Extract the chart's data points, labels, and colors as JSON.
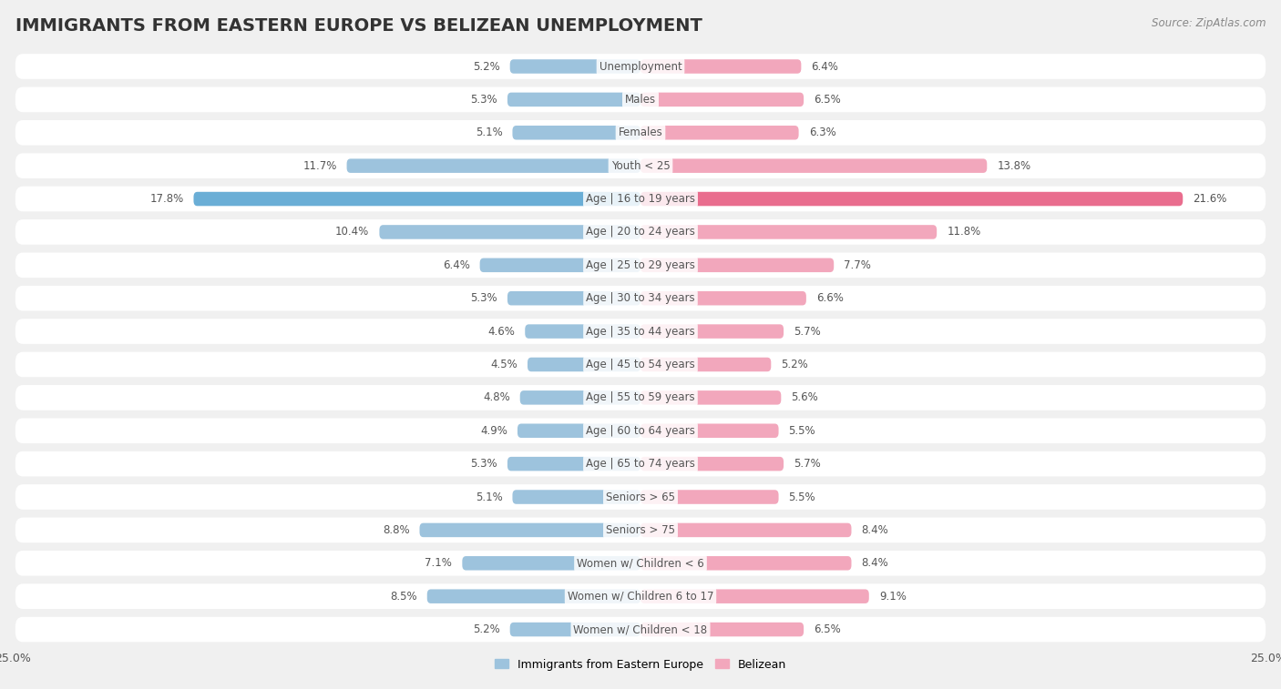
{
  "title": "IMMIGRANTS FROM EASTERN EUROPE VS BELIZEAN UNEMPLOYMENT",
  "source": "Source: ZipAtlas.com",
  "categories": [
    "Unemployment",
    "Males",
    "Females",
    "Youth < 25",
    "Age | 16 to 19 years",
    "Age | 20 to 24 years",
    "Age | 25 to 29 years",
    "Age | 30 to 34 years",
    "Age | 35 to 44 years",
    "Age | 45 to 54 years",
    "Age | 55 to 59 years",
    "Age | 60 to 64 years",
    "Age | 65 to 74 years",
    "Seniors > 65",
    "Seniors > 75",
    "Women w/ Children < 6",
    "Women w/ Children 6 to 17",
    "Women w/ Children < 18"
  ],
  "left_values": [
    5.2,
    5.3,
    5.1,
    11.7,
    17.8,
    10.4,
    6.4,
    5.3,
    4.6,
    4.5,
    4.8,
    4.9,
    5.3,
    5.1,
    8.8,
    7.1,
    8.5,
    5.2
  ],
  "right_values": [
    6.4,
    6.5,
    6.3,
    13.8,
    21.6,
    11.8,
    7.7,
    6.6,
    5.7,
    5.2,
    5.6,
    5.5,
    5.7,
    5.5,
    8.4,
    8.4,
    9.1,
    6.5
  ],
  "left_color": "#9dc3dd",
  "right_color": "#f2a7bc",
  "highlight_left_color": "#6aaed6",
  "highlight_right_color": "#e96d8e",
  "highlight_rows": [
    4
  ],
  "xlim": 25.0,
  "bg_color": "#f0f0f0",
  "row_bg_color": "#ffffff",
  "row_alt_bg_color": "#f7f7f7",
  "legend_left": "Immigrants from Eastern Europe",
  "legend_right": "Belizean",
  "title_fontsize": 14,
  "label_fontsize": 8.5,
  "value_fontsize": 8.5
}
